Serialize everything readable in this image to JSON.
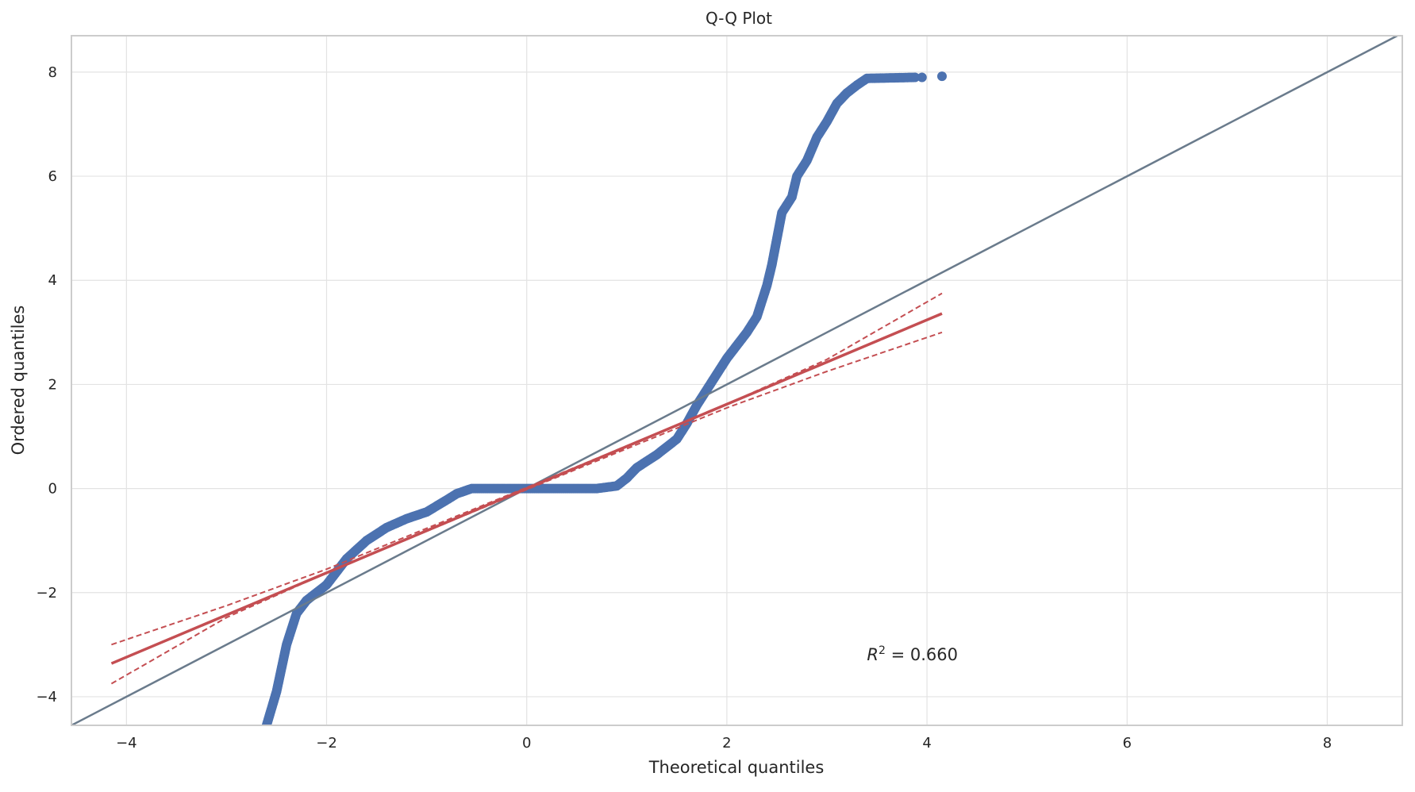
{
  "chart_data": {
    "type": "scatter",
    "title": "Q-Q Plot",
    "xlabel": "Theoretical quantiles",
    "ylabel": "Ordered quantiles",
    "xlim": [
      -4.55,
      8.75
    ],
    "ylim": [
      -4.55,
      8.7
    ],
    "xticks": [
      -4,
      -2,
      0,
      2,
      4,
      6,
      8
    ],
    "yticks": [
      -4,
      -2,
      0,
      2,
      4,
      6,
      8
    ],
    "grid": true,
    "annotation": {
      "r_label": "R",
      "sup": "2",
      "text": " = 0.660",
      "x": 3.4,
      "y": -3.3
    },
    "colors": {
      "points": "#4c72b0",
      "fit": "#c44e52",
      "reference": "#6a7b8c",
      "grid": "#e3e3e3",
      "frame": "#cccccc"
    },
    "points_series": {
      "name": "",
      "anchors": [
        [
          -2.6,
          -4.55
        ],
        [
          -2.5,
          -3.9
        ],
        [
          -2.4,
          -3.0
        ],
        [
          -2.3,
          -2.4
        ],
        [
          -2.2,
          -2.15
        ],
        [
          -2.0,
          -1.85
        ],
        [
          -1.9,
          -1.6
        ],
        [
          -1.8,
          -1.35
        ],
        [
          -1.6,
          -1.0
        ],
        [
          -1.4,
          -0.75
        ],
        [
          -1.2,
          -0.58
        ],
        [
          -1.0,
          -0.45
        ],
        [
          -0.8,
          -0.22
        ],
        [
          -0.7,
          -0.1
        ],
        [
          -0.55,
          0.0
        ],
        [
          0.7,
          0.0
        ],
        [
          0.9,
          0.05
        ],
        [
          1.0,
          0.2
        ],
        [
          1.1,
          0.4
        ],
        [
          1.3,
          0.65
        ],
        [
          1.5,
          0.95
        ],
        [
          1.6,
          1.25
        ],
        [
          1.7,
          1.6
        ],
        [
          1.8,
          1.9
        ],
        [
          1.9,
          2.2
        ],
        [
          2.0,
          2.5
        ],
        [
          2.1,
          2.75
        ],
        [
          2.2,
          3.0
        ],
        [
          2.3,
          3.3
        ],
        [
          2.4,
          3.9
        ],
        [
          2.45,
          4.3
        ],
        [
          2.5,
          4.8
        ],
        [
          2.55,
          5.3
        ],
        [
          2.65,
          5.6
        ],
        [
          2.7,
          6.0
        ],
        [
          2.8,
          6.3
        ],
        [
          2.9,
          6.75
        ],
        [
          3.0,
          7.05
        ],
        [
          3.1,
          7.4
        ],
        [
          3.2,
          7.6
        ],
        [
          3.3,
          7.75
        ],
        [
          3.4,
          7.88
        ],
        [
          3.9,
          7.9
        ]
      ],
      "tail": [
        [
          3.95,
          7.9
        ],
        [
          4.15,
          7.92
        ]
      ]
    },
    "fit_line": {
      "name": "",
      "slope": 0.81,
      "intercept": 0.0,
      "x": [
        -4.15,
        4.15
      ]
    },
    "fit_band_upper": [
      [
        -4.15,
        -3.0
      ],
      [
        -3.0,
        -2.25
      ],
      [
        -2.0,
        -1.55
      ],
      [
        0.0,
        0.02
      ],
      [
        2.0,
        1.62
      ],
      [
        3.0,
        2.48
      ],
      [
        4.15,
        3.75
      ]
    ],
    "fit_band_lower": [
      [
        -4.15,
        -3.75
      ],
      [
        -3.0,
        -2.48
      ],
      [
        -2.0,
        -1.62
      ],
      [
        0.0,
        -0.02
      ],
      [
        2.0,
        1.55
      ],
      [
        3.0,
        2.25
      ],
      [
        4.15,
        3.0
      ]
    ],
    "reference_line": {
      "name": "",
      "x": [
        -4.55,
        8.75
      ],
      "y": [
        -4.55,
        8.75
      ]
    }
  }
}
